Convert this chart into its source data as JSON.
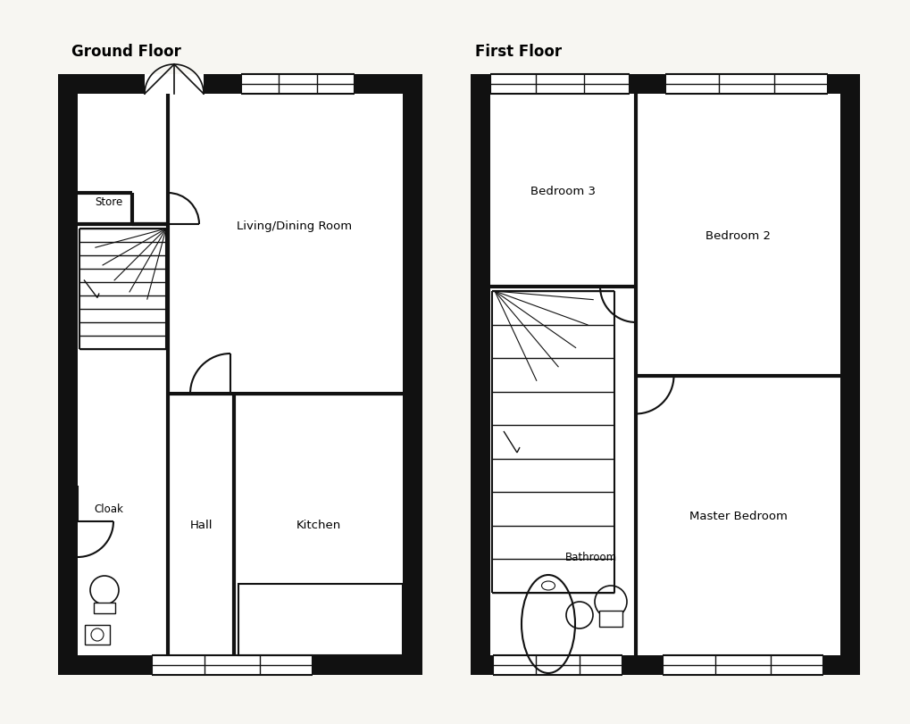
{
  "bg_color": "#f7f6f2",
  "wall_color": "#111111",
  "line_color": "#111111",
  "title_ground": "Ground Floor",
  "title_first": "First Floor",
  "room_labels": {
    "living_dining": "Living/Dining Room",
    "store": "Store",
    "hall": "Hall",
    "kitchen": "Kitchen",
    "cloak": "Cloak",
    "bedroom3": "Bedroom 3",
    "bedroom2": "Bedroom 2",
    "master": "Master Bedroom",
    "bathroom": "Bathroom"
  },
  "font_size_title": 12,
  "font_size_room": 9.5
}
